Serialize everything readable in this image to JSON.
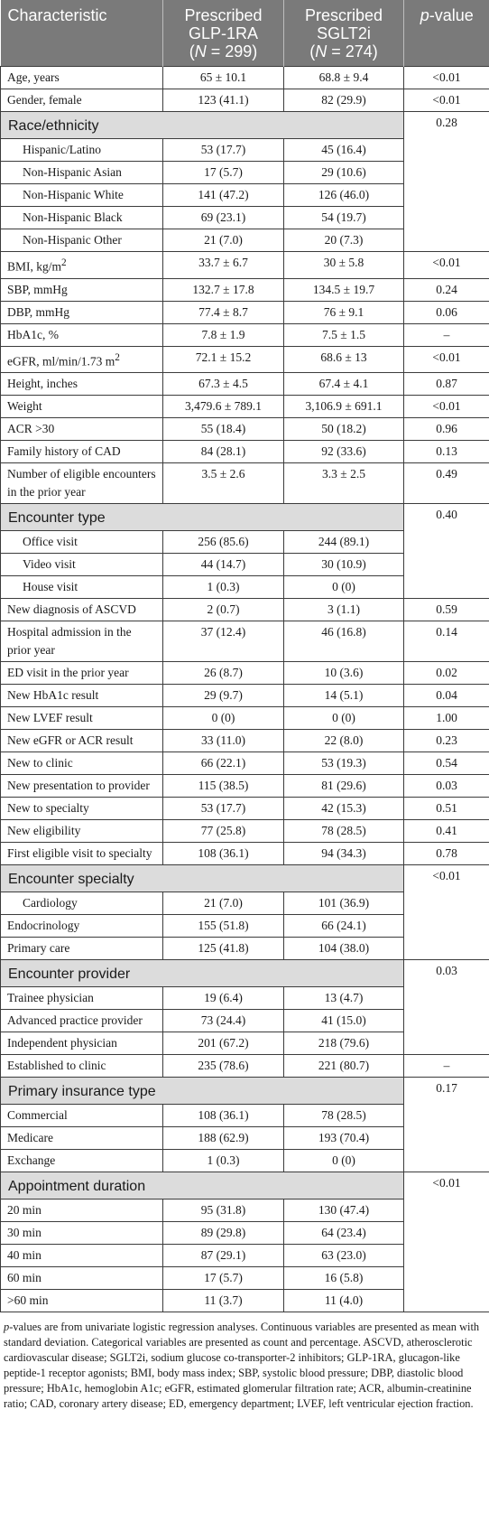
{
  "header": {
    "col1": "Characteristic",
    "col2_l1": "Prescribed",
    "col2_l2": "GLP-1RA",
    "col2_n_open": "(",
    "col2_n_italic": "N",
    "col2_n_rest": " = 299)",
    "col3_l1": "Prescribed",
    "col3_l2": "SGLT2i",
    "col3_n_open": "(",
    "col3_n_italic": "N",
    "col3_n_rest": " = 274)",
    "col4_italic": "p",
    "col4_rest": "-value"
  },
  "rows": {
    "age": {
      "label": "Age, years",
      "g": "65 ± 10.1",
      "s": "68.8 ± 9.4",
      "p": "<0.01"
    },
    "gender": {
      "label": "Gender, female",
      "g": "123 (41.1)",
      "s": "82 (29.9)",
      "p": "<0.01"
    },
    "race": {
      "title": "Race/ethnicity",
      "p": "0.28",
      "items": [
        {
          "label": "Hispanic/Latino",
          "g": "53 (17.7)",
          "s": "45 (16.4)"
        },
        {
          "label": "Non-Hispanic Asian",
          "g": "17 (5.7)",
          "s": "29 (10.6)"
        },
        {
          "label": "Non-Hispanic White",
          "g": "141 (47.2)",
          "s": "126 (46.0)"
        },
        {
          "label": "Non-Hispanic Black",
          "g": "69 (23.1)",
          "s": "54 (19.7)"
        },
        {
          "label": "Non-Hispanic Other",
          "g": "21 (7.0)",
          "s": "20 (7.3)"
        }
      ]
    },
    "bmi": {
      "label": "BMI, kg/m",
      "sup": "2",
      "g": "33.7 ± 6.7",
      "s": "30 ± 5.8",
      "p": "<0.01"
    },
    "sbp": {
      "label": "SBP, mmHg",
      "g": "132.7 ± 17.8",
      "s": "134.5 ± 19.7",
      "p": "0.24"
    },
    "dbp": {
      "label": "DBP, mmHg",
      "g": "77.4 ± 8.7",
      "s": "76 ± 9.1",
      "p": "0.06"
    },
    "hba1c": {
      "label": "HbA1c, %",
      "g": "7.8 ± 1.9",
      "s": "7.5 ± 1.5",
      "p": "–"
    },
    "egfr": {
      "label": "eGFR, ml/min/1.73 m",
      "sup": "2",
      "g": "72.1 ± 15.2",
      "s": "68.6 ± 13",
      "p": "<0.01"
    },
    "height": {
      "label": "Height, inches",
      "g": "67.3 ± 4.5",
      "s": "67.4 ± 4.1",
      "p": "0.87"
    },
    "weight": {
      "label": "Weight",
      "g": "3,479.6 ± 789.1",
      "s": "3,106.9 ± 691.1",
      "p": "<0.01"
    },
    "acr": {
      "label": "ACR >30",
      "g": "55 (18.4)",
      "s": "50 (18.2)",
      "p": "0.96"
    },
    "famhx": {
      "label": "Family history of CAD",
      "g": "84 (28.1)",
      "s": "92 (33.6)",
      "p": "0.13"
    },
    "encounters": {
      "label": "Number of eligible encounters in the prior year",
      "g": "3.5 ± 2.6",
      "s": "3.3 ± 2.5",
      "p": "0.49"
    },
    "enctype": {
      "title": "Encounter type",
      "p": "0.40",
      "items": [
        {
          "label": "Office visit",
          "g": "256 (85.6)",
          "s": "244 (89.1)"
        },
        {
          "label": "Video visit",
          "g": "44 (14.7)",
          "s": "30 (10.9)"
        },
        {
          "label": "House visit",
          "g": "1 (0.3)",
          "s": "0 (0)"
        }
      ]
    },
    "ascvd": {
      "label": "New diagnosis of ASCVD",
      "g": "2 (0.7)",
      "s": "3 (1.1)",
      "p": "0.59"
    },
    "hosp": {
      "label": "Hospital admission in the prior year",
      "g": "37 (12.4)",
      "s": "46 (16.8)",
      "p": "0.14"
    },
    "ed": {
      "label": "ED visit in the prior year",
      "g": "26 (8.7)",
      "s": "10 (3.6)",
      "p": "0.02"
    },
    "newhba1c": {
      "label": "New HbA1c result",
      "g": "29 (9.7)",
      "s": "14 (5.1)",
      "p": "0.04"
    },
    "newlvef": {
      "label": "New LVEF result",
      "g": "0 (0)",
      "s": "0 (0)",
      "p": "1.00"
    },
    "newegfr": {
      "label": "New eGFR or ACR result",
      "g": "33 (11.0)",
      "s": "22 (8.0)",
      "p": "0.23"
    },
    "newclinic": {
      "label": "New to clinic",
      "g": "66 (22.1)",
      "s": "53 (19.3)",
      "p": "0.54"
    },
    "newpres": {
      "label": "New presentation to provider",
      "g": "115 (38.5)",
      "s": "81 (29.6)",
      "p": "0.03"
    },
    "newspec": {
      "label": "New to specialty",
      "g": "53 (17.7)",
      "s": "42 (15.3)",
      "p": "0.51"
    },
    "newelig": {
      "label": "New eligibility",
      "g": "77 (25.8)",
      "s": "78 (28.5)",
      "p": "0.41"
    },
    "firstelig": {
      "label": "First eligible visit to specialty",
      "g": "108 (36.1)",
      "s": "94 (34.3)",
      "p": "0.78"
    },
    "encspec": {
      "title": "Encounter specialty",
      "p": "<0.01",
      "items": [
        {
          "label": "Cardiology",
          "g": "21 (7.0)",
          "s": "101 (36.9)"
        },
        {
          "label": "Endocrinology",
          "g": "155 (51.8)",
          "s": "66 (24.1)"
        },
        {
          "label": "Primary care",
          "g": "125 (41.8)",
          "s": "104 (38.0)"
        }
      ]
    },
    "encprov": {
      "title": "Encounter provider",
      "p": "0.03",
      "items": [
        {
          "label": "Trainee physician",
          "g": "19 (6.4)",
          "s": "13 (4.7)"
        },
        {
          "label": "Advanced practice provider",
          "g": "73 (24.4)",
          "s": "41 (15.0)"
        },
        {
          "label": "Independent physician",
          "g": "201 (67.2)",
          "s": "218 (79.6)"
        }
      ]
    },
    "established": {
      "label": "Established to clinic",
      "g": "235 (78.6)",
      "s": "221 (80.7)",
      "p": "–"
    },
    "insurance": {
      "title": "Primary insurance type",
      "p": "0.17",
      "items": [
        {
          "label": "Commercial",
          "g": "108 (36.1)",
          "s": "78 (28.5)"
        },
        {
          "label": "Medicare",
          "g": "188 (62.9)",
          "s": "193 (70.4)"
        },
        {
          "label": "Exchange",
          "g": "1 (0.3)",
          "s": "0 (0)"
        }
      ]
    },
    "duration": {
      "title": "Appointment duration",
      "p": "<0.01",
      "items": [
        {
          "label": "20 min",
          "g": "95 (31.8)",
          "s": "130 (47.4)"
        },
        {
          "label": "30 min",
          "g": "89 (29.8)",
          "s": "64 (23.4)"
        },
        {
          "label": "40 min",
          "g": "87 (29.1)",
          "s": "63 (23.0)"
        },
        {
          "label": "60 min",
          "g": "17 (5.7)",
          "s": "16 (5.8)"
        },
        {
          "label": ">60 min",
          "g": "11 (3.7)",
          "s": "11 (4.0)"
        }
      ]
    }
  },
  "footnote": {
    "p_italic": "p",
    "text": "-values are from univariate logistic regression analyses. Continuous variables are presented as mean with standard deviation. Categorical variables are presented as count and percentage. ASCVD, atherosclerotic cardiovascular disease; SGLT2i, sodium glucose co-transporter-2 inhibitors; GLP-1RA, glucagon-like peptide-1 receptor agonists; BMI, body mass index; SBP, systolic blood pressure; DBP, diastolic blood pressure; HbA1c, hemoglobin A1c; eGFR, estimated glomerular filtration rate; ACR, albumin-creatinine ratio; CAD, coronary artery disease; ED, emergency department; LVEF, left ventricular ejection fraction."
  }
}
